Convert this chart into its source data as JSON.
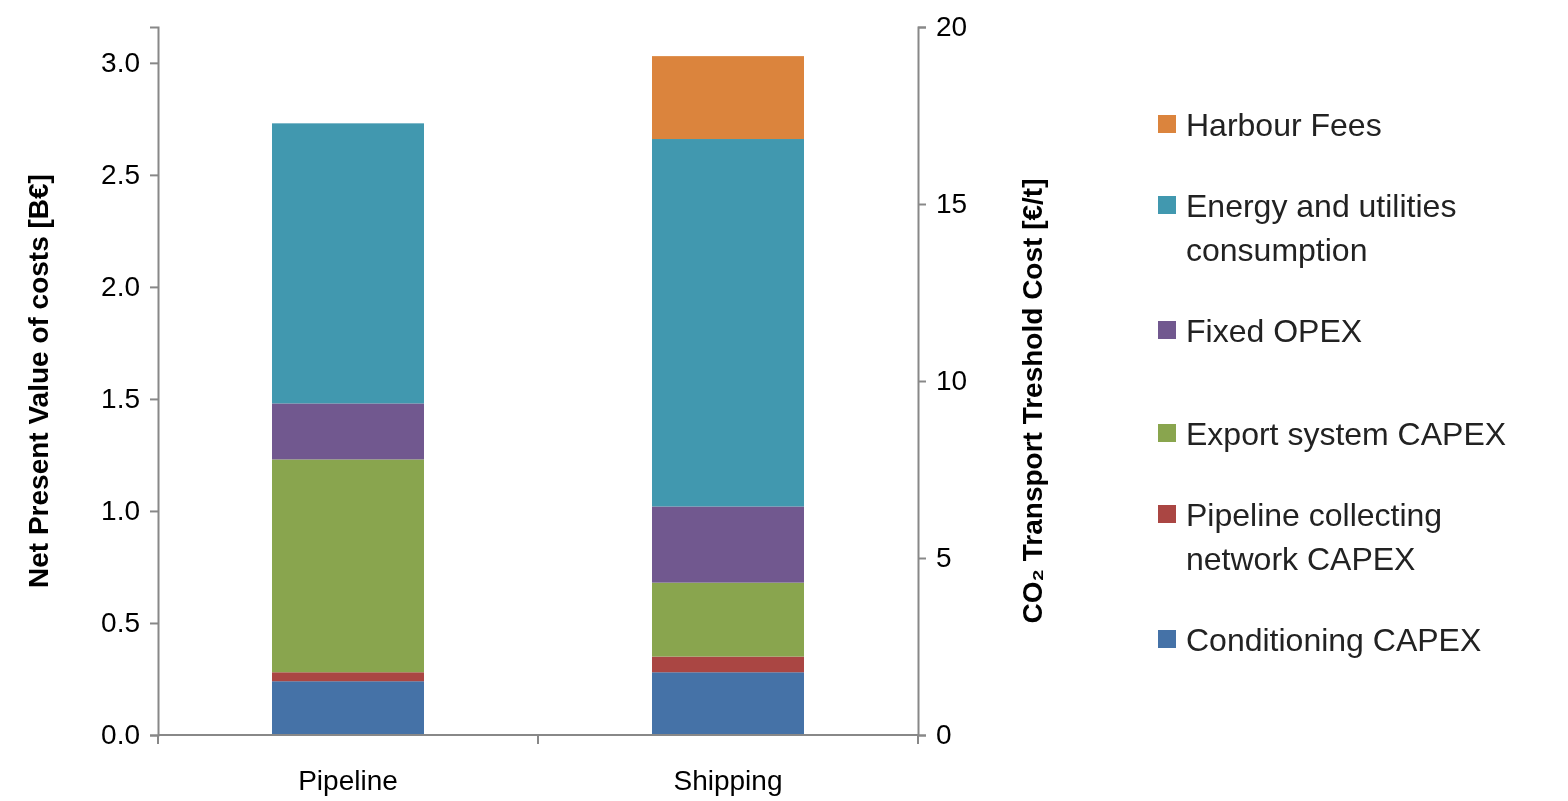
{
  "chart_data": {
    "type": "bar",
    "stacked": true,
    "categories": [
      "Pipeline",
      "Shipping"
    ],
    "series": [
      {
        "name": "Conditioning CAPEX",
        "color": "#4572a7",
        "values": [
          0.24,
          0.28
        ]
      },
      {
        "name": "Pipeline collecting network CAPEX",
        "color": "#aa4643",
        "values": [
          0.04,
          0.07
        ]
      },
      {
        "name": "Export system CAPEX",
        "color": "#89a54e",
        "values": [
          0.95,
          0.33
        ]
      },
      {
        "name": "Fixed OPEX",
        "color": "#71588f",
        "values": [
          0.25,
          0.34
        ]
      },
      {
        "name": "Energy and utilities consumption",
        "color": "#4198af",
        "values": [
          1.25,
          1.64
        ]
      },
      {
        "name": "Harbour Fees",
        "color": "#db843d",
        "values": [
          0,
          0.37
        ]
      }
    ],
    "ylabel": "Net Present Value of costs [B€]",
    "y2label": "CO₂ Transport Treshold Cost [€/t]",
    "ylim": [
      0,
      3.16
    ],
    "yticks": [
      {
        "value": 0,
        "label": "0.0"
      },
      {
        "value": 0.5,
        "label": "0.5"
      },
      {
        "value": 1,
        "label": "1.0"
      },
      {
        "value": 1.5,
        "label": "1.5"
      },
      {
        "value": 2,
        "label": "2.0"
      },
      {
        "value": 2.5,
        "label": "2.5"
      },
      {
        "value": 3,
        "label": "3.0"
      }
    ],
    "y2lim": [
      0,
      20
    ],
    "y2ticks": [
      0,
      5,
      10,
      15,
      20
    ],
    "grid": false,
    "legend": "right"
  }
}
